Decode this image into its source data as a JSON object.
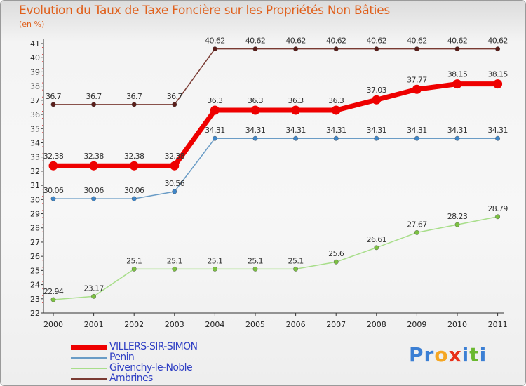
{
  "title": "Evolution du Taux de Taxe Foncière sur les Propriétés Non Bâties",
  "unit": "(en %)",
  "logo": {
    "text": "Proxiti",
    "letters": [
      {
        "ch": "P",
        "color": "#3b7fd4"
      },
      {
        "ch": "r",
        "color": "#3b7fd4"
      },
      {
        "ch": "o",
        "color": "#f5a623"
      },
      {
        "ch": "x",
        "color": "#e8301a"
      },
      {
        "ch": "i",
        "color": "#3b7fd4"
      },
      {
        "ch": "t",
        "color": "#6ab82f"
      },
      {
        "ch": "i",
        "color": "#3b7fd4"
      }
    ]
  },
  "chart_data": {
    "type": "line",
    "title": "Evolution du Taux de Taxe Foncière sur les Propriétés Non Bâties",
    "ylabel": "(en %)",
    "xlabel": "",
    "x": [
      "2000",
      "2001",
      "2002",
      "2003",
      "2004",
      "2005",
      "2006",
      "2007",
      "2008",
      "2009",
      "2010",
      "2011"
    ],
    "ylim": [
      22,
      41
    ],
    "yticks": [
      "22",
      "23",
      "24",
      "25",
      "26",
      "27",
      "28",
      "29",
      "30",
      "31",
      "32",
      "33",
      "34",
      "35",
      "36",
      "37",
      "38",
      "39",
      "40",
      "41"
    ],
    "grid": false,
    "legend_position": "bottom-left",
    "series": [
      {
        "name": "Ambrines",
        "color": "#7a3b33",
        "marker_color": "#5a1e1a",
        "thick": false,
        "values": [
          36.7,
          36.7,
          36.7,
          36.7,
          40.62,
          40.62,
          40.62,
          40.62,
          40.62,
          40.62,
          40.62,
          40.62
        ],
        "labels": [
          "36.7",
          "36.7",
          "36.7",
          "36.7",
          "40.62",
          "40.62",
          "40.62",
          "40.62",
          "40.62",
          "40.62",
          "40.62",
          "40.62"
        ]
      },
      {
        "name": "Penin",
        "color": "#6a9cc6",
        "marker_color": "#3f86c8",
        "thick": false,
        "values": [
          30.06,
          30.06,
          30.06,
          30.56,
          34.31,
          34.31,
          34.31,
          34.31,
          34.31,
          34.31,
          34.31,
          34.31
        ],
        "labels": [
          "30.06",
          "30.06",
          "30.06",
          "30.56",
          "34.31",
          "34.31",
          "34.31",
          "34.31",
          "34.31",
          "34.31",
          "34.31",
          "34.31"
        ]
      },
      {
        "name": "Givenchy-le-Noble",
        "color": "#a8de8a",
        "marker_color": "#7cc142",
        "thick": false,
        "values": [
          22.94,
          23.17,
          25.1,
          25.1,
          25.1,
          25.1,
          25.1,
          25.6,
          26.61,
          27.67,
          28.23,
          28.79
        ],
        "labels": [
          "22.94",
          "23.17",
          "25.1",
          "25.1",
          "25.1",
          "25.1",
          "25.1",
          "25.6",
          "26.61",
          "27.67",
          "28.23",
          "28.79"
        ]
      },
      {
        "name": "VILLERS-SIR-SIMON",
        "color": "#ee0000",
        "marker_color": "#ee0000",
        "thick": true,
        "values": [
          32.38,
          32.38,
          32.38,
          32.38,
          36.3,
          36.3,
          36.3,
          36.3,
          37.03,
          37.77,
          38.15,
          38.15
        ],
        "labels": [
          "32.38",
          "32.38",
          "32.38",
          "32.38",
          "36.3",
          "36.3",
          "36.3",
          "36.3",
          "37.03",
          "37.77",
          "38.15",
          "38.15"
        ]
      }
    ],
    "legend_order": [
      "VILLERS-SIR-SIMON",
      "Penin",
      "Givenchy-le-Noble",
      "Ambrines"
    ]
  }
}
